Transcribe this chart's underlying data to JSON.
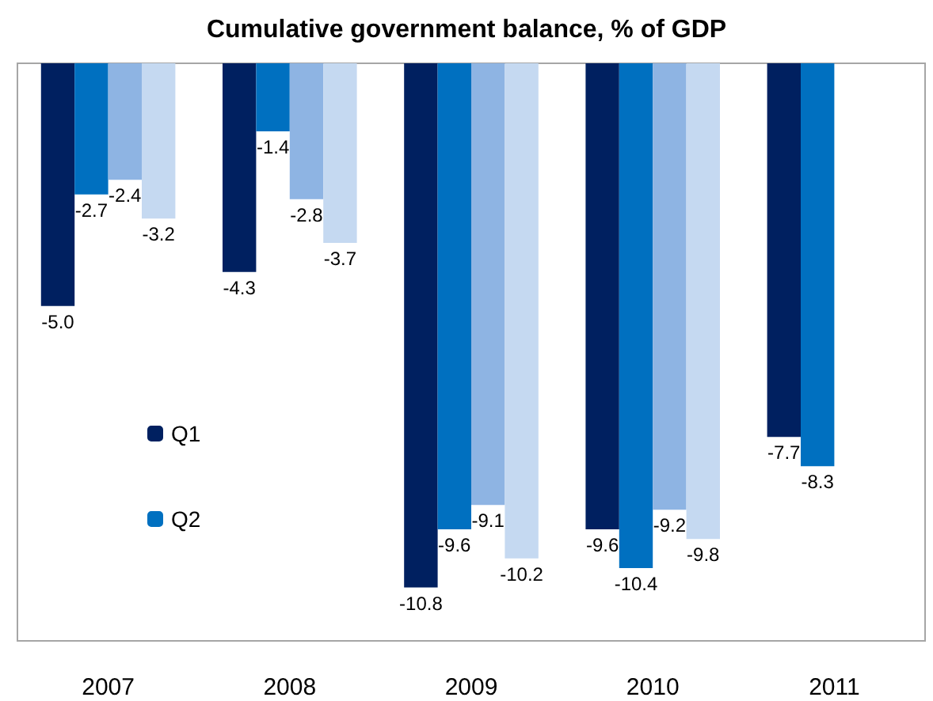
{
  "chart_data": {
    "type": "bar",
    "title": "Cumulative government balance, % of GDP",
    "categories": [
      "2007",
      "2008",
      "2009",
      "2010",
      "2011"
    ],
    "series": [
      {
        "name": "Q1",
        "color": "#002060",
        "values": [
          -5.0,
          -4.3,
          -10.8,
          -9.6,
          -7.7
        ],
        "value_labels": [
          "-5.0",
          "-4.3",
          "-10.8",
          "-9.6",
          "-7.7"
        ]
      },
      {
        "name": "Q2",
        "color": "#0070c0",
        "values": [
          -2.7,
          -1.4,
          -9.6,
          -10.4,
          -8.3
        ],
        "value_labels": [
          "-2.7",
          "-1.4",
          "-9.6",
          "-10.4",
          "-8.3"
        ]
      },
      {
        "color": "#8eb4e3",
        "values": [
          -2.4,
          -2.8,
          -9.1,
          -9.2,
          null
        ],
        "value_labels": [
          "-2.4",
          "-2.8",
          "-9.1",
          "-9.2",
          null
        ]
      },
      {
        "color": "#c5d9f1",
        "values": [
          -3.2,
          -3.7,
          -10.2,
          -9.8,
          null
        ],
        "value_labels": [
          "-3.2",
          "-3.7",
          "-10.2",
          "-9.8",
          null
        ]
      }
    ],
    "ylim": [
      -11.9,
      0
    ],
    "tick_labels": "x",
    "grid": false,
    "legend": "left"
  }
}
